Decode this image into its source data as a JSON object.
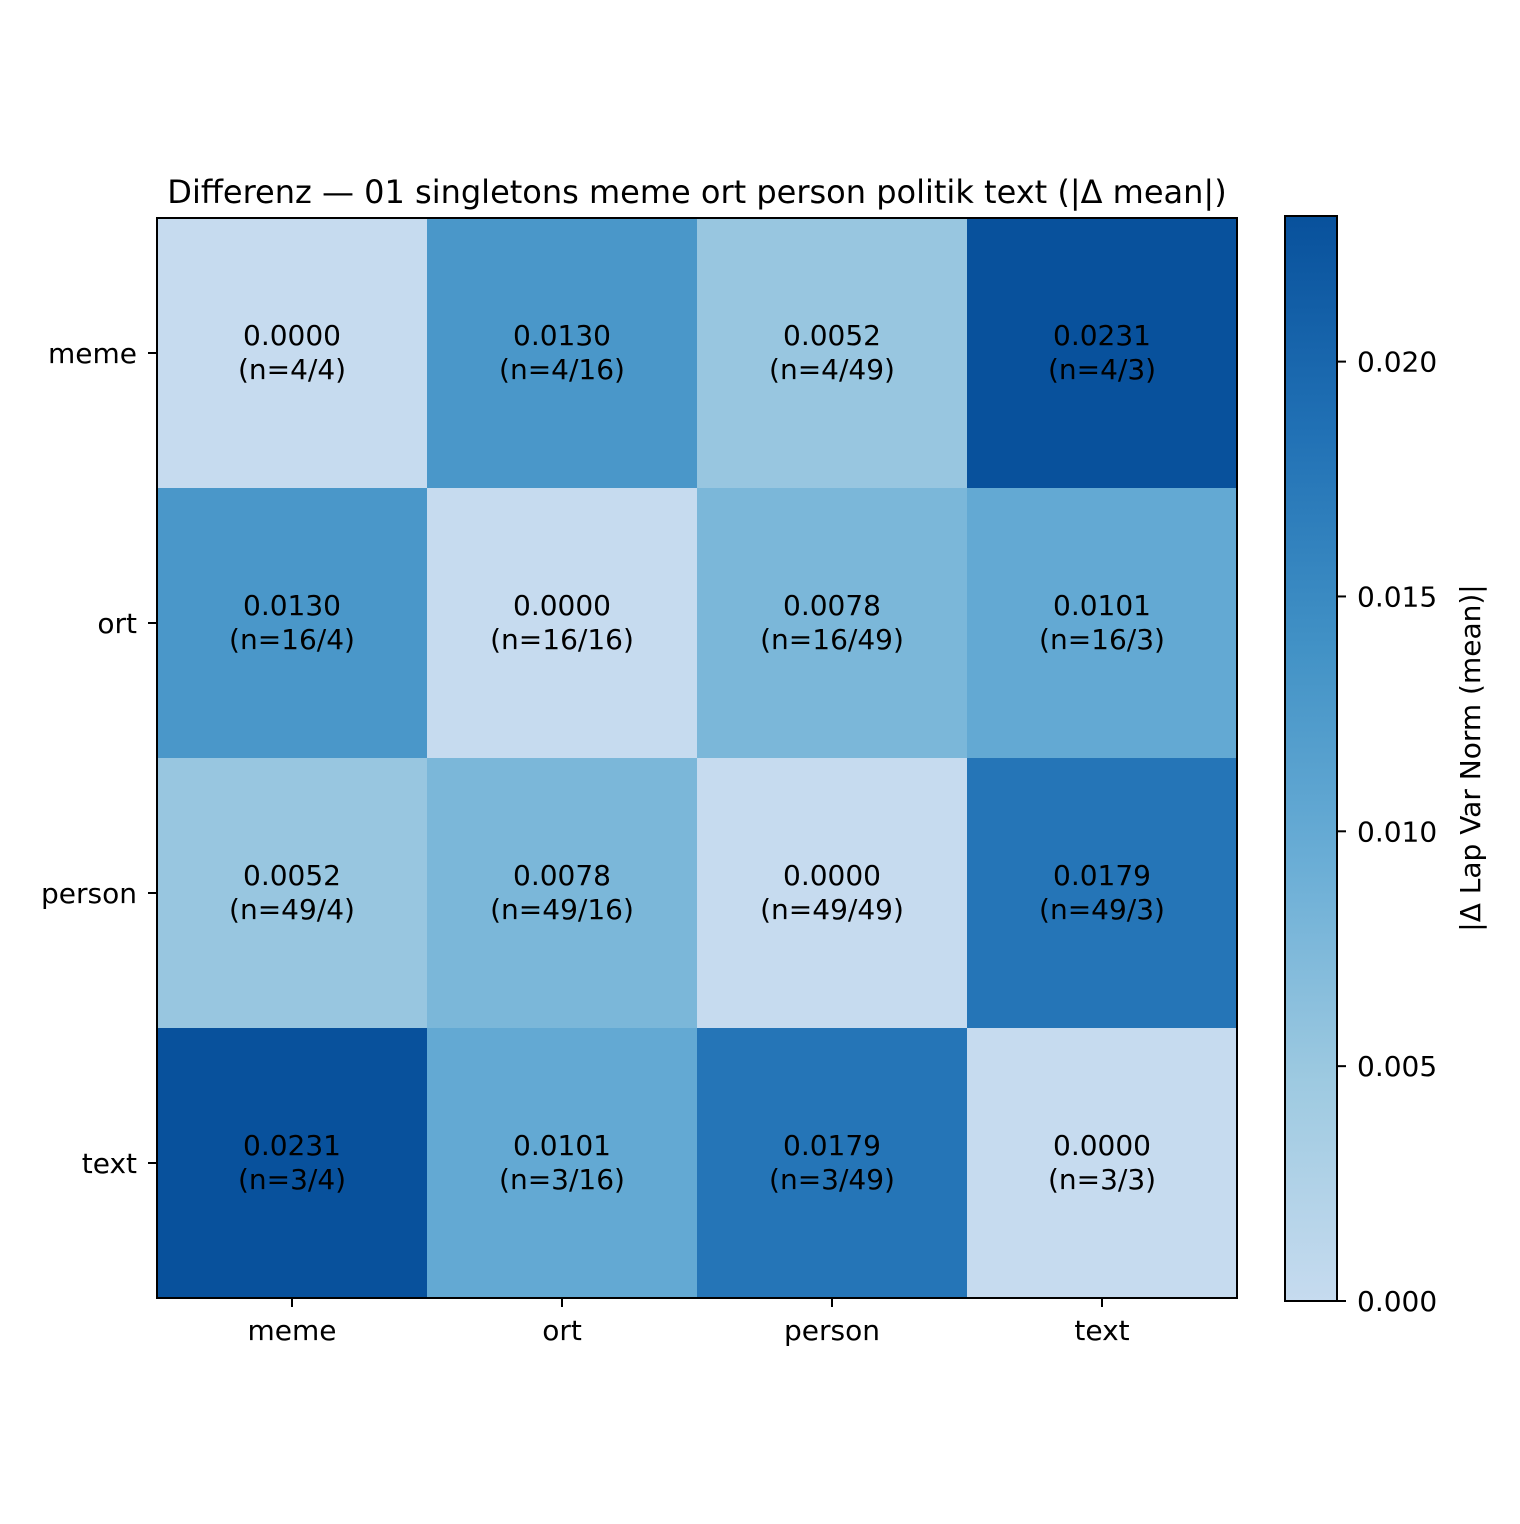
{
  "chart_data": {
    "type": "heatmap",
    "title": "Differenz — 01 singletons meme ort person politik text (|Δ mean|)",
    "row_labels": [
      "meme",
      "ort",
      "person",
      "text"
    ],
    "column_labels": [
      "meme",
      "ort",
      "person",
      "text"
    ],
    "values": [
      [
        0.0,
        0.013,
        0.0052,
        0.0231
      ],
      [
        0.013,
        0.0,
        0.0078,
        0.0101
      ],
      [
        0.0052,
        0.0078,
        0.0,
        0.0179
      ],
      [
        0.0231,
        0.0101,
        0.0179,
        0.0
      ]
    ],
    "cell_labels": [
      [
        {
          "value": "0.0000",
          "n": "(n=4/4)"
        },
        {
          "value": "0.0130",
          "n": "(n=4/16)"
        },
        {
          "value": "0.0052",
          "n": "(n=4/49)"
        },
        {
          "value": "0.0231",
          "n": "(n=4/3)"
        }
      ],
      [
        {
          "value": "0.0130",
          "n": "(n=16/4)"
        },
        {
          "value": "0.0000",
          "n": "(n=16/16)"
        },
        {
          "value": "0.0078",
          "n": "(n=16/49)"
        },
        {
          "value": "0.0101",
          "n": "(n=16/3)"
        }
      ],
      [
        {
          "value": "0.0052",
          "n": "(n=49/4)"
        },
        {
          "value": "0.0078",
          "n": "(n=49/16)"
        },
        {
          "value": "0.0000",
          "n": "(n=49/49)"
        },
        {
          "value": "0.0179",
          "n": "(n=49/3)"
        }
      ],
      [
        {
          "value": "0.0231",
          "n": "(n=3/4)"
        },
        {
          "value": "0.0101",
          "n": "(n=3/16)"
        },
        {
          "value": "0.0179",
          "n": "(n=3/49)"
        },
        {
          "value": "0.0000",
          "n": "(n=3/3)"
        }
      ]
    ],
    "colorbar": {
      "label": "|Δ Lap Var Norm (mean)|",
      "range": [
        0,
        0.0231
      ],
      "ticks": [
        0.0,
        0.005,
        0.01,
        0.015,
        0.02
      ],
      "tick_labels": [
        "0.000",
        "0.005",
        "0.010",
        "0.015",
        "0.020"
      ],
      "colormap": "Blues",
      "colors": [
        "#c6dbef",
        "#9ecae1",
        "#6baed6",
        "#4292c6",
        "#2171b5",
        "#08519c"
      ]
    },
    "grid": false
  }
}
